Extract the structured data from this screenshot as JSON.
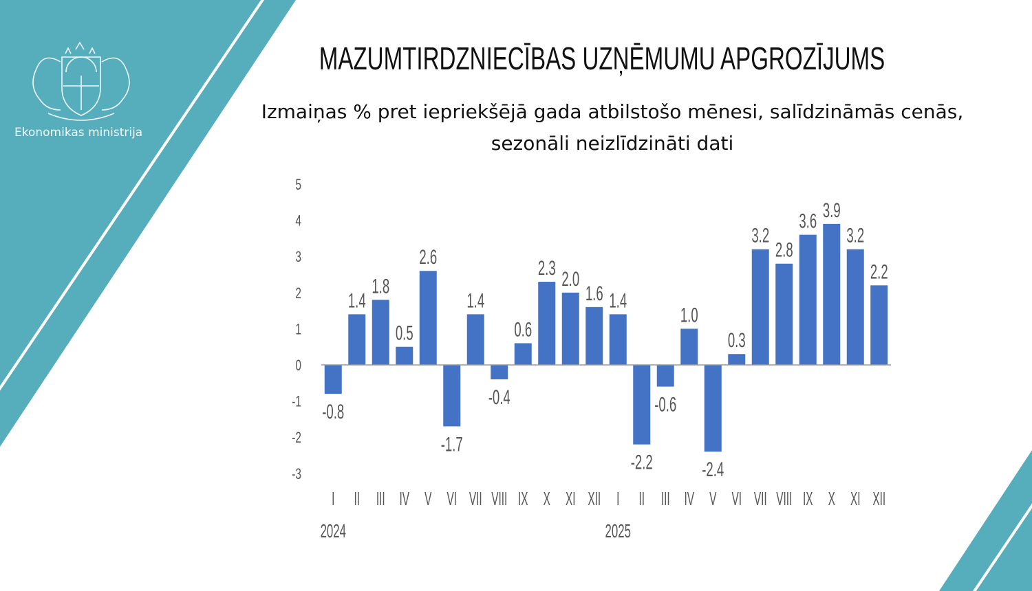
{
  "brand": {
    "name": "Ekonomikas ministrija",
    "color": "#56aebd",
    "logo": "Latvian coat of arms"
  },
  "header": {
    "title": "MAZUMTIRDZNIECĪBAS UZŅĒMUMU APGROZĪJUMS",
    "subtitle": "Izmaiņas % pret iepriekšējā gada atbilstošo mēnesi, salīdzināmās cenās, sezonāli neizlīdzināti dati"
  },
  "chart_data": {
    "type": "bar",
    "categories": [
      "I",
      "II",
      "III",
      "IV",
      "V",
      "VI",
      "VII",
      "VIII",
      "IX",
      "X",
      "XI",
      "XII",
      "I",
      "II",
      "III",
      "IV",
      "V",
      "VI",
      "VII",
      "VIII",
      "IX",
      "X",
      "XI",
      "XII"
    ],
    "groups": [
      {
        "label": "2024",
        "start": 0
      },
      {
        "label": "2025",
        "start": 12
      }
    ],
    "values": [
      -0.8,
      1.4,
      1.8,
      0.5,
      2.6,
      -1.7,
      1.4,
      -0.4,
      0.6,
      2.3,
      2.0,
      1.6,
      1.4,
      -2.2,
      -0.6,
      1.0,
      -2.4,
      0.3,
      3.2,
      2.8,
      3.6,
      3.9,
      3.2,
      2.2
    ],
    "labels": [
      "-0.8",
      "1.4",
      "1.8",
      "0.5",
      "2.6",
      "-1.7",
      "1.4",
      "-0.4",
      "0.6",
      "2.3",
      "2.0",
      "1.6",
      "1.4",
      "-2.2",
      "-0.6",
      "1.0",
      "-2.4",
      "0.3",
      "3.2",
      "2.8",
      "3.6",
      "3.9",
      "3.2",
      "2.2"
    ],
    "ylim": [
      -3,
      5
    ],
    "yticks": [
      "5",
      "4",
      "3",
      "2",
      "1",
      "0",
      "-1",
      "-2",
      "-3"
    ],
    "bar_color": "#4472c4",
    "grid": false,
    "legend": "none"
  }
}
